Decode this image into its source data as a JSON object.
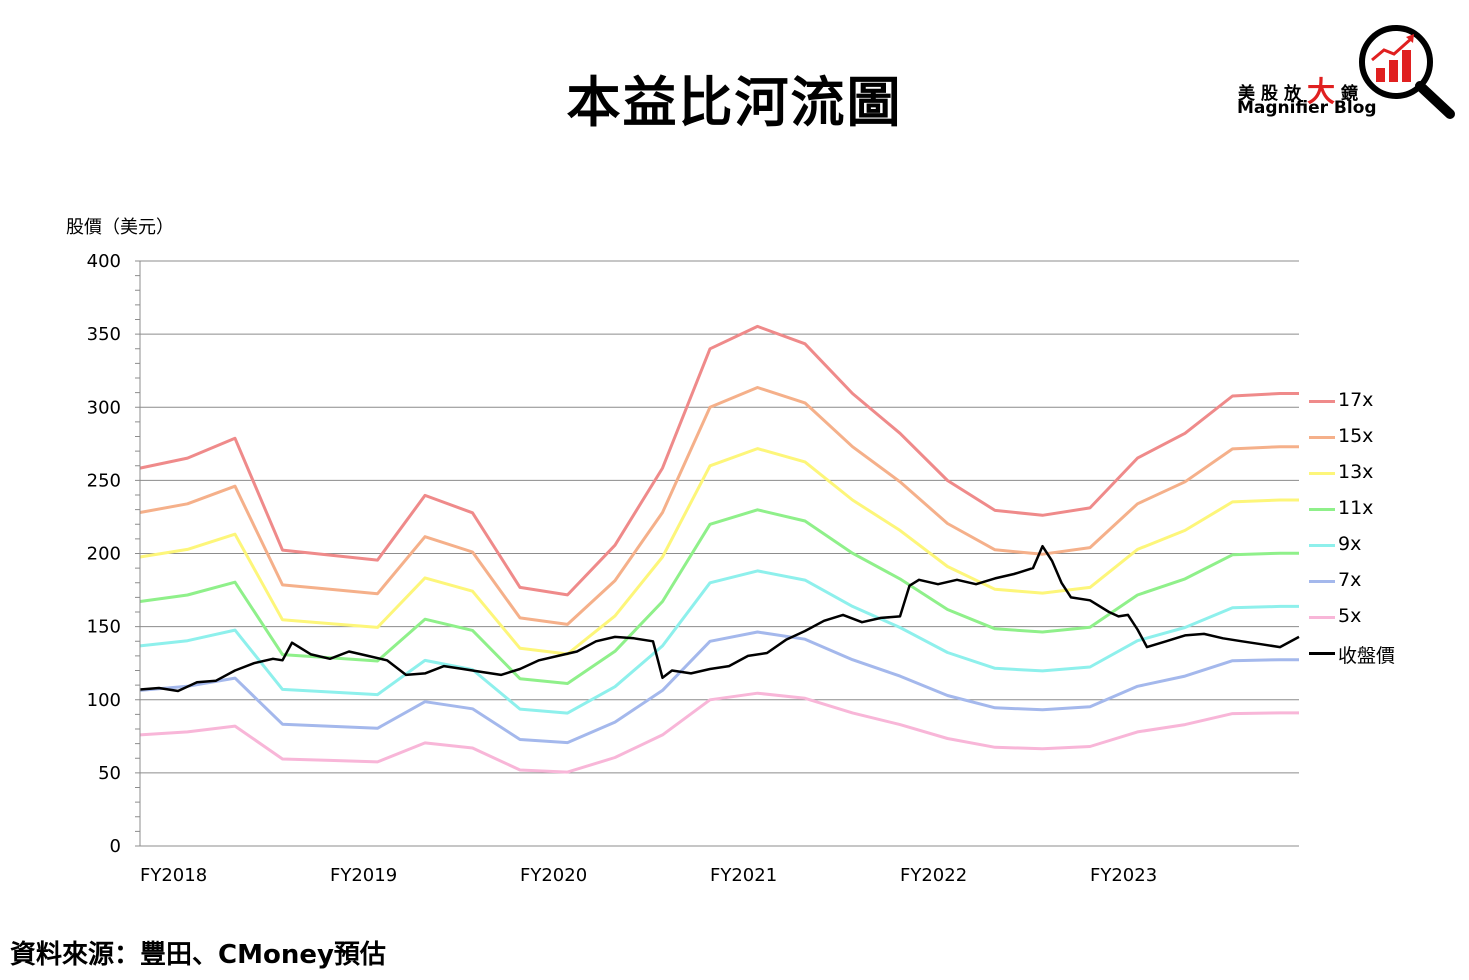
{
  "title": "本益比河流圖",
  "logo": {
    "name_cn_1": "美股放",
    "name_cn_big": "大",
    "name_cn_2": "鏡",
    "name_en": "Magnifier Blog"
  },
  "source": "資料來源：豐田、CMoney預估",
  "chart_data": {
    "type": "line",
    "ylabel": "股價（美元）",
    "xlabel": "",
    "ylim": [
      0,
      400
    ],
    "yticks": [
      0,
      50,
      100,
      150,
      200,
      250,
      300,
      350,
      400
    ],
    "xlim": [
      2018.0,
      2024.1
    ],
    "xticks": [
      {
        "x": 2018.0,
        "label": "FY2018"
      },
      {
        "x": 2019.0,
        "label": "FY2019"
      },
      {
        "x": 2020.0,
        "label": "FY2020"
      },
      {
        "x": 2021.0,
        "label": "FY2021"
      },
      {
        "x": 2022.0,
        "label": "FY2022"
      },
      {
        "x": 2023.0,
        "label": "FY2023"
      }
    ],
    "grid": true,
    "legend": "right",
    "band_x": [
      2018.0,
      2018.25,
      2018.5,
      2018.75,
      2019.0,
      2019.25,
      2019.5,
      2019.75,
      2020.0,
      2020.25,
      2020.5,
      2020.75,
      2021.0,
      2021.25,
      2021.5,
      2021.75,
      2022.0,
      2022.25,
      2022.5,
      2022.75,
      2023.0,
      2023.25,
      2023.5,
      2023.75,
      2024.0,
      2024.1
    ],
    "eps": [
      15.2,
      15.6,
      16.4,
      11.9,
      11.7,
      11.5,
      14.1,
      13.4,
      10.4,
      10.1,
      12.1,
      15.2,
      20.0,
      20.9,
      20.2,
      18.2,
      16.6,
      14.7,
      13.5,
      13.3,
      13.6,
      15.6,
      16.6,
      18.1,
      18.2,
      18.2
    ],
    "series": [
      {
        "name": "17x",
        "pe": 17,
        "color": "#ef8a8a"
      },
      {
        "name": "15x",
        "pe": 15,
        "color": "#f5b08a"
      },
      {
        "name": "13x",
        "pe": 13,
        "color": "#fdf67a"
      },
      {
        "name": "11x",
        "pe": 11,
        "color": "#8ff08a"
      },
      {
        "name": "9x",
        "pe": 9,
        "color": "#8ef0ec"
      },
      {
        "name": "7x",
        "pe": 7,
        "color": "#a4b8ec"
      },
      {
        "name": "5x",
        "pe": 5,
        "color": "#f8b6d8"
      },
      {
        "name": "收盤價",
        "color": "#000000",
        "x": [
          2018.0,
          2018.1,
          2018.2,
          2018.3,
          2018.4,
          2018.5,
          2018.6,
          2018.7,
          2018.75,
          2018.8,
          2018.9,
          2019.0,
          2019.1,
          2019.2,
          2019.3,
          2019.4,
          2019.5,
          2019.6,
          2019.7,
          2019.8,
          2019.9,
          2020.0,
          2020.1,
          2020.2,
          2020.3,
          2020.4,
          2020.5,
          2020.6,
          2020.7,
          2020.75,
          2020.8,
          2020.9,
          2021.0,
          2021.1,
          2021.2,
          2021.3,
          2021.4,
          2021.5,
          2021.6,
          2021.7,
          2021.8,
          2021.9,
          2022.0,
          2022.05,
          2022.1,
          2022.2,
          2022.3,
          2022.4,
          2022.5,
          2022.6,
          2022.7,
          2022.75,
          2022.8,
          2022.85,
          2022.9,
          2023.0,
          2023.1,
          2023.15,
          2023.2,
          2023.25,
          2023.3,
          2023.4,
          2023.5,
          2023.6,
          2023.7,
          2023.8,
          2023.9,
          2024.0,
          2024.1
        ],
        "y": [
          107,
          108,
          106,
          112,
          113,
          120,
          125,
          128,
          127,
          139,
          131,
          128,
          133,
          130,
          127,
          117,
          118,
          123,
          121,
          119,
          117,
          121,
          127,
          130,
          133,
          140,
          143,
          142,
          140,
          115,
          120,
          118,
          121,
          123,
          130,
          132,
          141,
          147,
          154,
          158,
          153,
          156,
          157,
          178,
          182,
          179,
          182,
          179,
          183,
          186,
          190,
          205,
          195,
          180,
          170,
          168,
          160,
          157,
          158,
          148,
          136,
          140,
          144,
          145,
          142,
          140,
          138,
          136,
          143
        ]
      }
    ]
  }
}
